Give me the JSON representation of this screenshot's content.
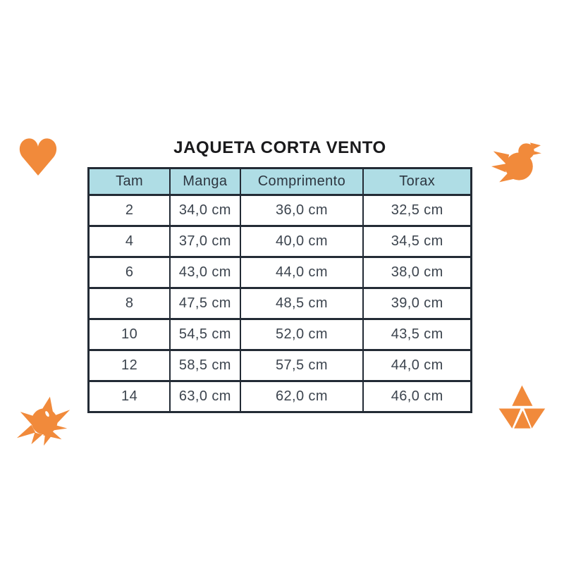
{
  "title": "JAQUETA CORTA VENTO",
  "chart_data": {
    "type": "table",
    "title": "JAQUETA CORTA VENTO",
    "columns": [
      "Tam",
      "Manga",
      "Comprimento",
      "Torax"
    ],
    "rows": [
      [
        "2",
        "34,0 cm",
        "36,0 cm",
        "32,5 cm"
      ],
      [
        "4",
        "37,0 cm",
        "40,0 cm",
        "34,5 cm"
      ],
      [
        "6",
        "43,0 cm",
        "44,0 cm",
        "38,0 cm"
      ],
      [
        "8",
        "47,5 cm",
        "48,5 cm",
        "39,0 cm"
      ],
      [
        "10",
        "54,5 cm",
        "52,0 cm",
        "43,5 cm"
      ],
      [
        "12",
        "58,5 cm",
        "57,5 cm",
        "44,0 cm"
      ],
      [
        "14",
        "63,0 cm",
        "62,0 cm",
        "46,0 cm"
      ]
    ]
  },
  "icons": {
    "top_left": "heart-icon",
    "top_right": "bird-icon",
    "bottom_left": "bird-icon",
    "bottom_right": "origami-boat-icon"
  },
  "colors": {
    "accent_orange": "#F18A3B",
    "header_fill": "#AFDDE5",
    "table_border": "#232B35",
    "cell_text": "#3C444E",
    "title_text": "#1A1A1C",
    "background": "#FFFFFF"
  }
}
